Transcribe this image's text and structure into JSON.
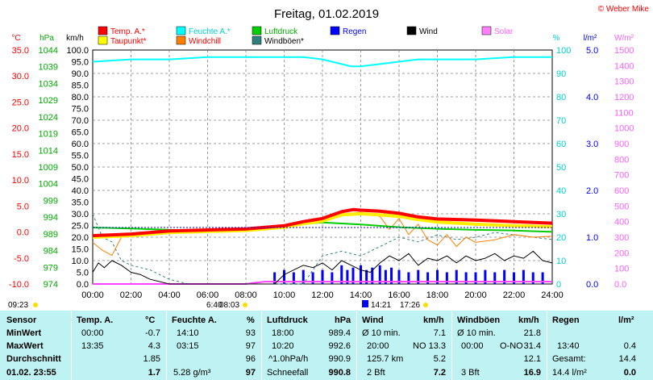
{
  "title": "Freitag, 01.02.2019",
  "copyright": "© Weber Mike",
  "legend": [
    {
      "label": "Temp. A.*",
      "color": "#ff0000",
      "text_color": "#ff0000"
    },
    {
      "label": "Feuchte A.*",
      "color": "#00ffff",
      "text_color": "#00d0d0"
    },
    {
      "label": "Luftdruck",
      "color": "#00cc00",
      "text_color": "#00aa00"
    },
    {
      "label": "Regen",
      "color": "#0000ff",
      "text_color": "#0000ff"
    },
    {
      "label": "Wind",
      "color": "#000000",
      "text_color": "#000000"
    },
    {
      "label": "Solar",
      "color": "#ff80ff",
      "text_color": "#ff60ff"
    },
    {
      "label": "Taupunkt*",
      "color": "#ffff00",
      "text_color": "#ff0000"
    },
    {
      "label": "Windchill",
      "color": "#ff8000",
      "text_color": "#ff0000"
    },
    {
      "label": "Windböen*",
      "color": "#308080",
      "text_color": "#000000"
    }
  ],
  "axis_units": {
    "temp": "°C",
    "press": "hPa",
    "wind": "km/h",
    "humid": "%",
    "rain": "l/m²",
    "solar": "W/m²"
  },
  "chart_data": {
    "type": "line",
    "x_range": [
      "00:00",
      "24:00"
    ],
    "x_ticks": [
      "00:00",
      "02:00",
      "04:00",
      "06:00",
      "08:00",
      "10:00",
      "12:00",
      "14:00",
      "16:00",
      "18:00",
      "20:00",
      "22:00",
      "24:00"
    ],
    "axes": {
      "temp": {
        "min": -10.0,
        "max": 35.0,
        "ticks": [
          "35.0",
          "30.0",
          "25.0",
          "20.0",
          "15.0",
          "10.0",
          "5.0",
          "0.0",
          "-5.0",
          "-10.0"
        ]
      },
      "press": {
        "min": 974,
        "max": 1044,
        "ticks": [
          "1044",
          "1039",
          "1034",
          "1029",
          "1024",
          "1019",
          "1014",
          "1009",
          "1004",
          "999",
          "994",
          "989",
          "984",
          "979",
          "974"
        ]
      },
      "wind": {
        "min": 0,
        "max": 100,
        "ticks": [
          "100.0",
          "95.0",
          "90.0",
          "85.0",
          "80.0",
          "75.0",
          "70.0",
          "65.0",
          "60.0",
          "55.0",
          "50.0",
          "45.0",
          "40.0",
          "35.0",
          "30.0",
          "25.0",
          "20.0",
          "15.0",
          "10.0",
          "5.0",
          "0.0"
        ]
      },
      "humid": {
        "min": 0,
        "max": 100,
        "ticks": [
          "100",
          "90",
          "80",
          "70",
          "60",
          "50",
          "40",
          "30",
          "20",
          "10",
          "0"
        ]
      },
      "rain": {
        "min": 0.0,
        "max": 5.0,
        "ticks": [
          "5.0",
          "4.0",
          "3.0",
          "2.0",
          "1.0",
          "0.0"
        ]
      },
      "solar": {
        "min": 0,
        "max": 1500,
        "ticks": [
          "1500",
          "1400",
          "1300",
          "1200",
          "1100",
          "1000",
          "900",
          "800",
          "700",
          "600",
          "500",
          "400",
          "300",
          "200",
          "100",
          "0.0"
        ]
      }
    },
    "series": [
      {
        "name": "Temp. A.*",
        "axis": "temp",
        "x": [
          0,
          2,
          4,
          6,
          8,
          10,
          11,
          12,
          13,
          13.6,
          14,
          15,
          16,
          17,
          18,
          20,
          22,
          24
        ],
        "values": [
          -0.7,
          -0.4,
          0.2,
          0.4,
          0.6,
          1.2,
          2.0,
          2.6,
          3.9,
          4.3,
          4.2,
          4.0,
          3.6,
          2.9,
          2.5,
          2.3,
          2.0,
          1.7
        ]
      },
      {
        "name": "Taupunkt*",
        "axis": "temp",
        "x": [
          0,
          2,
          4,
          6,
          8,
          10,
          11,
          12,
          13,
          14,
          15,
          16,
          17,
          18,
          20,
          22,
          24
        ],
        "values": [
          -1.0,
          -0.7,
          -0.1,
          0.1,
          0.3,
          0.9,
          1.6,
          2.1,
          3.3,
          3.5,
          3.3,
          3.0,
          2.4,
          1.9,
          1.5,
          1.2,
          1.0
        ]
      },
      {
        "name": "Windchill",
        "axis": "temp",
        "x": [
          0,
          0.5,
          1,
          1.5,
          2,
          3,
          4,
          6,
          8,
          10,
          12,
          13,
          14,
          15,
          15.5,
          16,
          16.5,
          17,
          17.5,
          18,
          18.5,
          19,
          19.5,
          20,
          21,
          22,
          23,
          24
        ],
        "values": [
          -2.0,
          -3.5,
          -4.5,
          -1.0,
          -0.6,
          0.0,
          0.2,
          0.4,
          0.6,
          1.2,
          2.5,
          3.5,
          3.8,
          3.0,
          0.5,
          2.6,
          -0.5,
          1.5,
          -1.5,
          -2.5,
          -0.5,
          -2.8,
          -1.0,
          -2.0,
          -1.5,
          -0.5,
          -1.0,
          -0.8
        ]
      },
      {
        "name": "Feuchte A.*",
        "axis": "humid",
        "x": [
          0,
          2,
          4,
          6,
          8,
          9,
          10,
          11,
          12,
          13,
          13.5,
          14,
          15,
          16,
          17,
          18,
          19,
          20,
          22,
          24
        ],
        "values": [
          95,
          96,
          96,
          97,
          97,
          97,
          97,
          97,
          96,
          94,
          93,
          93,
          94,
          95,
          96,
          96,
          96,
          96,
          97,
          97
        ]
      },
      {
        "name": "Luftdruck",
        "axis": "press",
        "x": [
          0,
          2,
          4,
          6,
          8,
          10,
          12,
          14,
          16,
          18,
          20,
          22,
          24
        ],
        "values": [
          990.9,
          990.6,
          990.2,
          990.0,
          990.3,
          991.5,
          992.4,
          991.8,
          991.0,
          990.5,
          990.2,
          990.0,
          989.6
        ]
      },
      {
        "name": "Wind",
        "axis": "wind",
        "x": [
          0,
          0.3,
          0.6,
          1,
          1.5,
          2,
          2.5,
          3,
          4,
          5,
          6,
          7,
          8,
          9,
          9.5,
          10,
          10.5,
          11,
          11.5,
          12,
          12.5,
          13,
          13.5,
          14,
          14.5,
          15,
          15.5,
          16,
          16.5,
          17,
          17.5,
          18,
          18.5,
          19,
          19.5,
          20,
          20.5,
          21,
          21.5,
          22,
          22.5,
          23,
          23.5,
          24
        ],
        "values": [
          5,
          9,
          7,
          10,
          8,
          5,
          4,
          2,
          0,
          0,
          0,
          0,
          0,
          0,
          0,
          4,
          6,
          8,
          7,
          9,
          6,
          10,
          8,
          6,
          5,
          9,
          12,
          10,
          13,
          8,
          11,
          10,
          12,
          9,
          12,
          10,
          11,
          13,
          10,
          12,
          11,
          14,
          10,
          9
        ]
      },
      {
        "name": "Windböen*",
        "axis": "wind",
        "x": [
          0,
          0.5,
          1,
          1.5,
          2,
          3,
          4,
          5,
          6,
          7,
          8,
          9,
          10,
          11,
          12,
          13,
          14,
          15,
          16,
          17,
          18,
          19,
          20,
          21,
          22,
          23,
          24
        ],
        "values": [
          30,
          20,
          18,
          10,
          8,
          6,
          2,
          0,
          0,
          0,
          0,
          0,
          0,
          0,
          12,
          14,
          12,
          16,
          20,
          18,
          21,
          19,
          20,
          22,
          21,
          20,
          19
        ]
      },
      {
        "name": "Solar",
        "axis": "solar",
        "x": [
          0,
          8,
          8.3,
          9,
          10,
          11,
          24
        ],
        "values": [
          0,
          0,
          5,
          15,
          15,
          15,
          15
        ]
      }
    ],
    "rain_bars": {
      "x": [
        9.5,
        10,
        10.5,
        11,
        11.5,
        12,
        12.5,
        13,
        13.3,
        13.6,
        14,
        14.3,
        14.6,
        15,
        15.3,
        15.6,
        16,
        16.5,
        17,
        17.5,
        18,
        18.5,
        19,
        19.5,
        20,
        20.5,
        21,
        21.5,
        22,
        22.5,
        23,
        23.5
      ],
      "values": [
        0.25,
        0.3,
        0.25,
        0.3,
        0.25,
        0.3,
        0.25,
        0.4,
        0.3,
        0.35,
        0.4,
        0.3,
        0.35,
        0.4,
        0.3,
        0.35,
        0.3,
        0.25,
        0.3,
        0.25,
        0.3,
        0.25,
        0.3,
        0.25,
        0.25,
        0.3,
        0.25,
        0.3,
        0.25,
        0.3,
        0.25,
        0.25
      ]
    },
    "markers": {
      "left_time": "09:23",
      "sunrise": "08:03",
      "sunrise_marker": "6:40",
      "moon_marker": "14:21",
      "sunset": "17:26"
    }
  },
  "stats_table": {
    "headers": [
      "Sensor",
      "Temp. A.",
      "°C",
      "Feuchte A.",
      "%",
      "Luftdruck",
      "hPa",
      "Wind",
      "km/h",
      "Windböen",
      "km/h",
      "Regen",
      "l/m²"
    ],
    "row_labels": [
      "MinWert",
      "MaxWert",
      "Durchschnitt"
    ],
    "date_label": "01.02. 23:55",
    "temp": {
      "min_time": "00:00",
      "min": "-0.7",
      "max_time": "13:35",
      "max": "4.3",
      "avg": "1.85",
      "now": "1.7"
    },
    "humid": {
      "min_time": "14:10",
      "min": "93",
      "max_time": "03:15",
      "max": "97",
      "avg": "96",
      "dew": "5.28 g/m³",
      "now": "97"
    },
    "press": {
      "min_time": "18:00",
      "min": "989.4",
      "max_time": "10:20",
      "max": "992.6",
      "trend_label": "^1.0hPa/h",
      "trend": "990.9",
      "snow_label": "Schneefall",
      "now": "990.8"
    },
    "wind": {
      "min_label": "Ø 10 min.",
      "min": "7.1",
      "max_time": "20:00",
      "max_dir": "NO",
      "max": "13.3",
      "dist": "125.7 km",
      "avg": "5.2",
      "bft": "2 Bft",
      "now": "7.2"
    },
    "gust": {
      "min_label": "Ø 10 min.",
      "min": "21.8",
      "max_time": "00:00",
      "max_dir": "O-NO",
      "max": "31.4",
      "avg": "12.1",
      "bft": "3 Bft",
      "now": "16.9"
    },
    "rain": {
      "max_time": "13:40",
      "max": "0.4",
      "total_label": "Gesamt:",
      "total": "14.4",
      "now": "14.4 l/m²",
      "now2": "0.0"
    }
  }
}
